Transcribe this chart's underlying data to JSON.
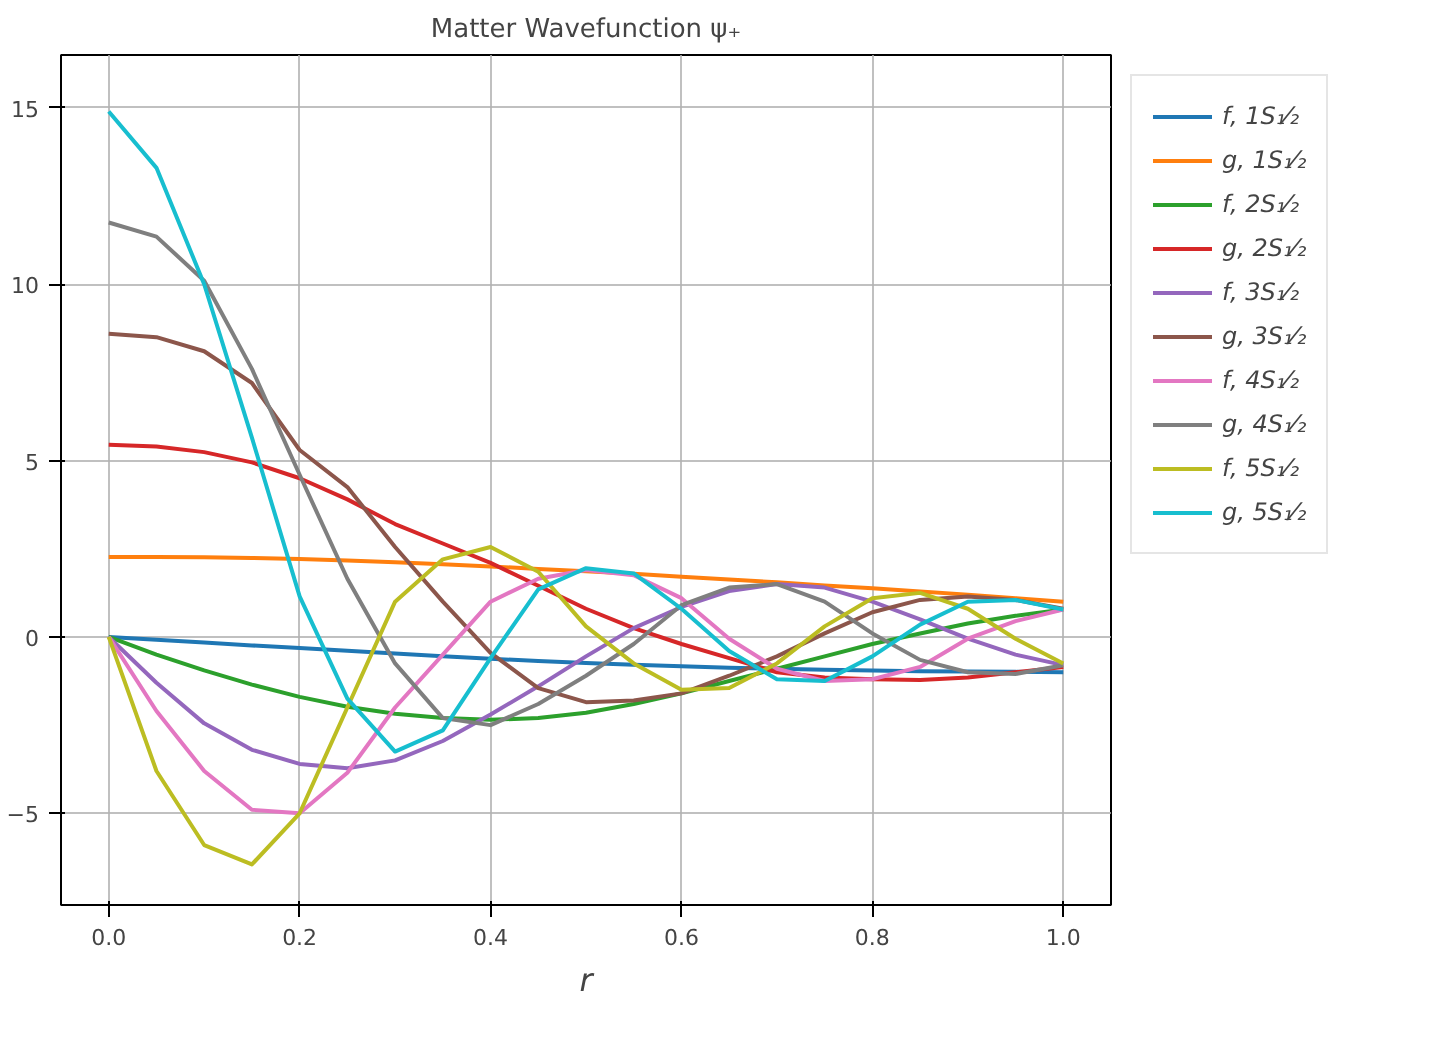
{
  "chart_data": {
    "type": "line",
    "title": "Matter Wavefunction ψ₊",
    "xlabel": "r",
    "x": [
      0,
      0.05,
      0.1,
      0.15,
      0.2,
      0.25,
      0.3,
      0.35,
      0.4,
      0.45,
      0.5,
      0.55,
      0.6,
      0.65,
      0.7,
      0.75,
      0.8,
      0.85,
      0.9,
      0.95,
      1.0
    ],
    "xlim": [
      -0.05,
      1.05
    ],
    "ylim": [
      -7.6,
      16.5
    ],
    "xticks": [
      {
        "value": 0,
        "label": "0.0"
      },
      0.2,
      0.4,
      0.6,
      0.8,
      {
        "value": 1,
        "label": "1.0"
      }
    ],
    "yticks": [
      {
        "value": -5,
        "label": "−5"
      },
      0,
      5,
      10,
      15
    ],
    "grid": true,
    "legend": "right",
    "line_style": "solid",
    "marker": "none",
    "series": [
      {
        "name": "f, 1S₁⁄₂",
        "color": "#1f77b4",
        "values": [
          0,
          -0.08,
          -0.16,
          -0.24,
          -0.31,
          -0.39,
          -0.47,
          -0.55,
          -0.62,
          -0.68,
          -0.74,
          -0.79,
          -0.83,
          -0.87,
          -0.9,
          -0.93,
          -0.95,
          -0.97,
          -0.98,
          -0.99,
          -1.0
        ]
      },
      {
        "name": "g, 1S₁⁄₂",
        "color": "#ff7f0e",
        "values": [
          2.27,
          2.27,
          2.26,
          2.24,
          2.21,
          2.17,
          2.12,
          2.06,
          2.0,
          1.93,
          1.86,
          1.79,
          1.71,
          1.63,
          1.55,
          1.46,
          1.38,
          1.29,
          1.2,
          1.1,
          1.0
        ]
      },
      {
        "name": "f, 2S₁⁄₂",
        "color": "#2ca02c",
        "values": [
          0,
          -0.5,
          -0.95,
          -1.35,
          -1.7,
          -1.98,
          -2.18,
          -2.3,
          -2.35,
          -2.3,
          -2.15,
          -1.9,
          -1.6,
          -1.25,
          -0.9,
          -0.55,
          -0.2,
          0.1,
          0.38,
          0.6,
          0.78
        ]
      },
      {
        "name": "g, 2S₁⁄₂",
        "color": "#d62728",
        "values": [
          5.45,
          5.4,
          5.24,
          4.95,
          4.5,
          3.9,
          3.2,
          2.65,
          2.1,
          1.45,
          0.8,
          0.25,
          -0.2,
          -0.6,
          -1.0,
          -1.15,
          -1.2,
          -1.22,
          -1.15,
          -1.0,
          -0.85
        ]
      },
      {
        "name": "f, 3S₁⁄₂",
        "color": "#9467bd",
        "values": [
          0,
          -1.3,
          -2.45,
          -3.2,
          -3.6,
          -3.72,
          -3.5,
          -2.95,
          -2.2,
          -1.4,
          -0.55,
          0.25,
          0.85,
          1.3,
          1.5,
          1.4,
          1.0,
          0.5,
          -0.05,
          -0.5,
          -0.8
        ]
      },
      {
        "name": "g, 3S₁⁄₂",
        "color": "#8c564b",
        "values": [
          8.6,
          8.5,
          8.1,
          7.2,
          5.3,
          4.25,
          2.55,
          1.0,
          -0.45,
          -1.45,
          -1.85,
          -1.8,
          -1.6,
          -1.1,
          -0.55,
          0.1,
          0.7,
          1.05,
          1.15,
          1.05,
          0.8
        ]
      },
      {
        "name": "f, 4S₁⁄₂",
        "color": "#e377c2",
        "values": [
          0,
          -2.1,
          -3.8,
          -4.9,
          -5.0,
          -3.85,
          -2.0,
          -0.5,
          1.0,
          1.65,
          1.9,
          1.75,
          1.1,
          -0.05,
          -0.9,
          -1.25,
          -1.2,
          -0.85,
          -0.05,
          0.45,
          0.78
        ]
      },
      {
        "name": "g, 4S₁⁄₂",
        "color": "#7f7f7f",
        "values": [
          11.75,
          11.35,
          10.1,
          7.6,
          4.6,
          1.65,
          -0.75,
          -2.3,
          -2.5,
          -1.9,
          -1.1,
          -0.2,
          0.9,
          1.4,
          1.5,
          1.0,
          0.1,
          -0.65,
          -1.0,
          -1.05,
          -0.8
        ]
      },
      {
        "name": "f, 5S₁⁄₂",
        "color": "#bcbd22",
        "values": [
          0,
          -3.8,
          -5.9,
          -6.45,
          -5.0,
          -2.0,
          1.0,
          2.2,
          2.55,
          1.85,
          0.3,
          -0.75,
          -1.5,
          -1.45,
          -0.75,
          0.3,
          1.1,
          1.25,
          0.8,
          -0.05,
          -0.75
        ]
      },
      {
        "name": "g, 5S₁⁄₂",
        "color": "#17becf",
        "values": [
          14.9,
          13.3,
          10.0,
          5.65,
          1.15,
          -1.75,
          -3.25,
          -2.65,
          -0.6,
          1.35,
          1.95,
          1.8,
          0.8,
          -0.4,
          -1.2,
          -1.25,
          -0.55,
          0.35,
          1.0,
          1.05,
          0.78
        ]
      }
    ]
  }
}
